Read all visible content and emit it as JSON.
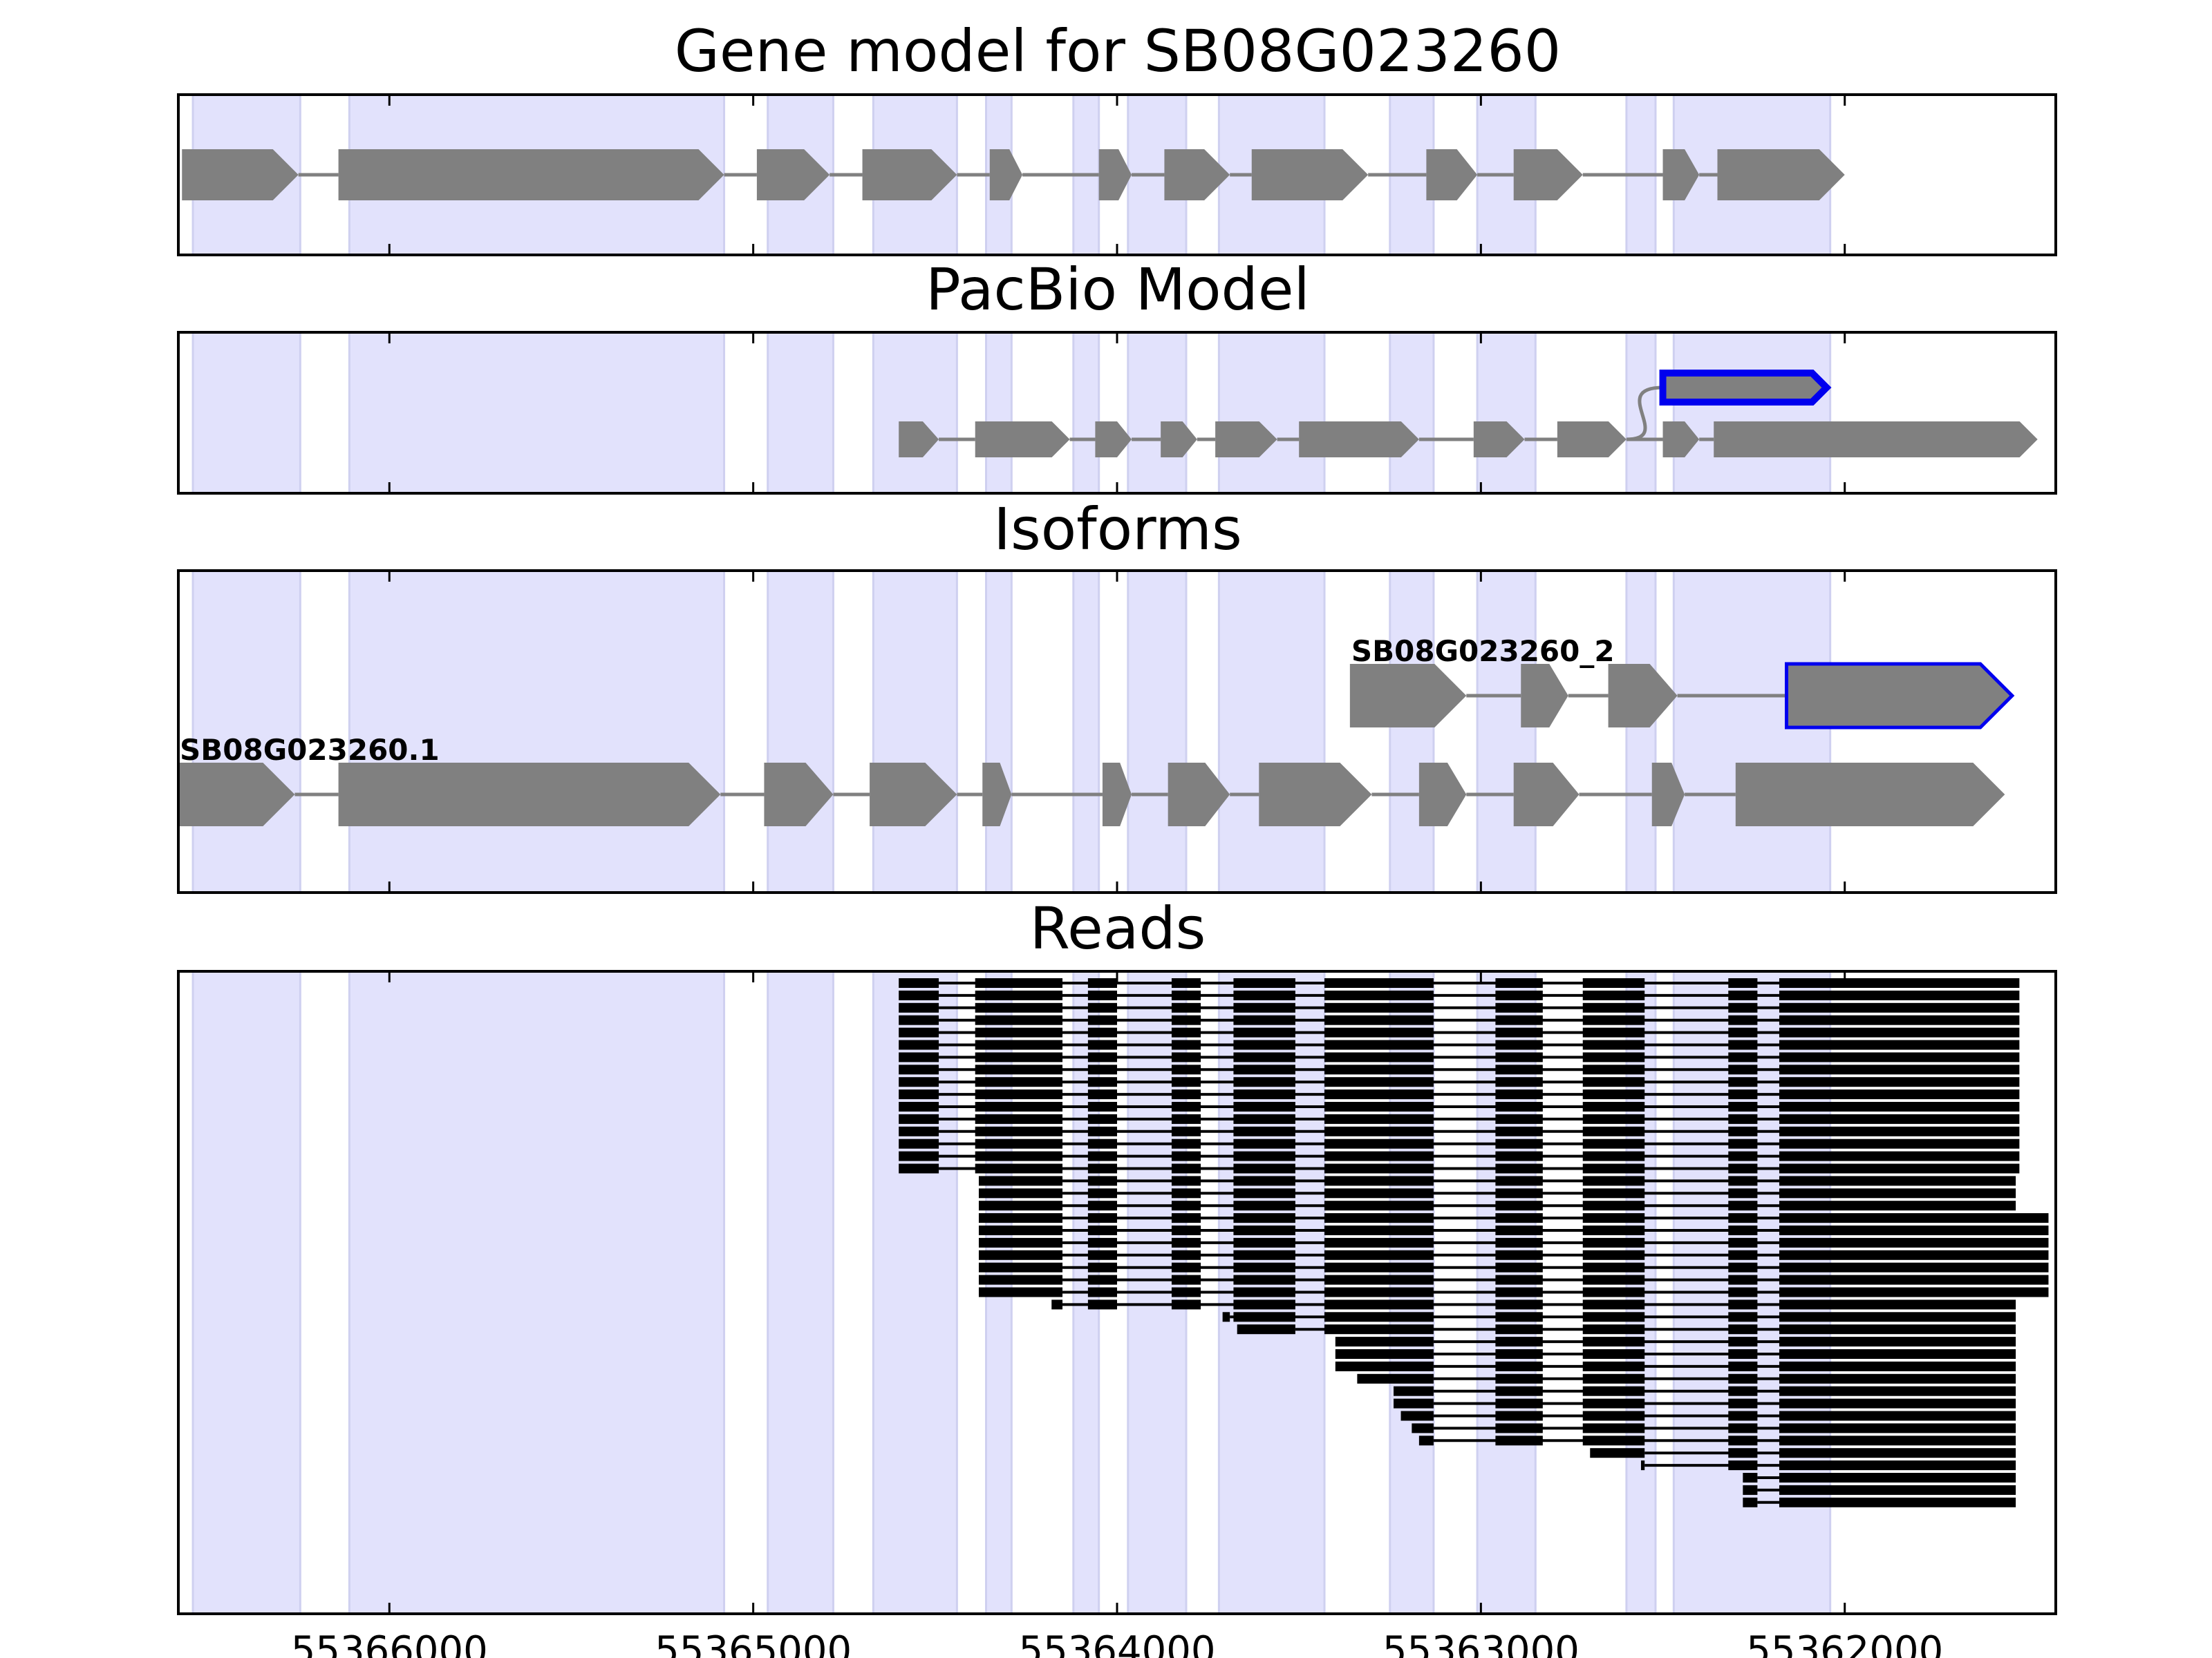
{
  "chart_data": {
    "type": "gene-structure",
    "xlim": [
      55366580,
      55361420
    ],
    "x_ticks": [
      55366000,
      55365000,
      55364000,
      55363000,
      55362000
    ],
    "x_tick_labels": [
      "55366000",
      "55365000",
      "55364000",
      "55363000",
      "55362000"
    ],
    "shaded_exons": [
      [
        55366540,
        55366245
      ],
      [
        55366110,
        55365080
      ],
      [
        55364960,
        55364780
      ],
      [
        55364670,
        55364440
      ],
      [
        55364360,
        55364290
      ],
      [
        55364120,
        55364050
      ],
      [
        55363970,
        55363810
      ],
      [
        55363720,
        55363430
      ],
      [
        55363250,
        55363130
      ],
      [
        55363010,
        55362850
      ],
      [
        55362600,
        55362520
      ],
      [
        55362470,
        55362040
      ]
    ],
    "panels": [
      {
        "id": "gene-model",
        "title": "Gene model for SB08G023260",
        "tracks": [
          {
            "exons": [
              [
                55366570,
                55366250
              ],
              [
                55366140,
                55365080
              ],
              [
                55364990,
                55364790
              ],
              [
                55364700,
                55364440
              ],
              [
                55364350,
                55364260
              ],
              [
                55364050,
                55363960
              ],
              [
                55363870,
                55363690
              ],
              [
                55363630,
                55363310
              ],
              [
                55363150,
                55363010
              ],
              [
                55362910,
                55362720
              ],
              [
                55362500,
                55362400
              ],
              [
                55362350,
                55362000
              ]
            ],
            "outline": false
          }
        ]
      },
      {
        "id": "pacbio-model",
        "title": "PacBio Model",
        "tracks": [
          {
            "exons": [
              [
                55364600,
                55364490
              ],
              [
                55364390,
                55364130
              ],
              [
                55364060,
                55363960
              ],
              [
                55363880,
                55363780
              ],
              [
                55363730,
                55363560
              ],
              [
                55363500,
                55363170
              ],
              [
                55363020,
                55362880
              ],
              [
                55362790,
                55362600
              ]
            ],
            "outline": false
          },
          {
            "exons": [
              [
                55362500,
                55362400
              ],
              [
                55362360,
                55361470
              ]
            ],
            "outline": false
          },
          {
            "exons": [
              [
                55362500,
                55362050
              ]
            ],
            "outline": true,
            "branch_from": 55362600
          }
        ]
      },
      {
        "id": "isoforms",
        "title": "Isoforms",
        "tracks": [
          {
            "label": "SB08G023260_2",
            "exons": [
              [
                55363360,
                55363040
              ],
              [
                55362890,
                55362760
              ],
              [
                55362650,
                55362460
              ],
              [
                55362160,
                55361540
              ]
            ],
            "outline_last": true
          },
          {
            "label": "SB08G023260.1",
            "exons": [
              [
                55366580,
                55366260
              ],
              [
                55366140,
                55365090
              ],
              [
                55364970,
                55364780
              ],
              [
                55364680,
                55364440
              ],
              [
                55364370,
                55364290
              ],
              [
                55364040,
                55363960
              ],
              [
                55363860,
                55363690
              ],
              [
                55363610,
                55363300
              ],
              [
                55363170,
                55363040
              ],
              [
                55362910,
                55362730
              ],
              [
                55362530,
                55362440
              ],
              [
                55362300,
                55361560
              ]
            ],
            "outline_last": false
          }
        ]
      },
      {
        "id": "reads",
        "title": "Reads"
      }
    ],
    "reads": [
      {
        "count": 16,
        "exons": [
          [
            55364600,
            55364490
          ],
          [
            55364390,
            55364150
          ],
          [
            55364080,
            55364000
          ],
          [
            55363850,
            55363770
          ],
          [
            55363680,
            55363510
          ],
          [
            55363430,
            55363130
          ],
          [
            55362960,
            55362830
          ],
          [
            55362720,
            55362550
          ],
          [
            55362320,
            55362240
          ],
          [
            55362180,
            55361520
          ]
        ]
      },
      {
        "count": 3,
        "exons": [
          [
            55364380,
            55364150
          ],
          [
            55364080,
            55364000
          ],
          [
            55363850,
            55363770
          ],
          [
            55363680,
            55363510
          ],
          [
            55363430,
            55363130
          ],
          [
            55362960,
            55362830
          ],
          [
            55362720,
            55362550
          ],
          [
            55362320,
            55362240
          ],
          [
            55362180,
            55361530
          ]
        ]
      },
      {
        "count": 7,
        "exons": [
          [
            55364380,
            55364150
          ],
          [
            55364080,
            55364000
          ],
          [
            55363850,
            55363770
          ],
          [
            55363680,
            55363510
          ],
          [
            55363430,
            55363130
          ],
          [
            55362960,
            55362830
          ],
          [
            55362720,
            55362550
          ],
          [
            55362320,
            55362240
          ],
          [
            55362180,
            55361440
          ]
        ]
      },
      {
        "count": 1,
        "exons": [
          [
            55364180,
            55364150
          ],
          [
            55364080,
            55364000
          ],
          [
            55363850,
            55363770
          ],
          [
            55363680,
            55363510
          ],
          [
            55363430,
            55363130
          ],
          [
            55362960,
            55362830
          ],
          [
            55362720,
            55362550
          ],
          [
            55362320,
            55362240
          ],
          [
            55362180,
            55361530
          ]
        ]
      },
      {
        "count": 1,
        "exons": [
          [
            55363710,
            55363690
          ],
          [
            55363680,
            55363510
          ],
          [
            55363430,
            55363130
          ],
          [
            55362960,
            55362830
          ],
          [
            55362720,
            55362550
          ],
          [
            55362320,
            55362240
          ],
          [
            55362180,
            55361530
          ]
        ]
      },
      {
        "count": 1,
        "exons": [
          [
            55363670,
            55363510
          ],
          [
            55363430,
            55363130
          ],
          [
            55362960,
            55362830
          ],
          [
            55362720,
            55362550
          ],
          [
            55362320,
            55362240
          ],
          [
            55362180,
            55361530
          ]
        ]
      },
      {
        "count": 3,
        "exons": [
          [
            55363400,
            55363130
          ],
          [
            55362960,
            55362830
          ],
          [
            55362720,
            55362550
          ],
          [
            55362320,
            55362240
          ],
          [
            55362180,
            55361530
          ]
        ]
      },
      {
        "count": 1,
        "exons": [
          [
            55363340,
            55363130
          ],
          [
            55362960,
            55362830
          ],
          [
            55362720,
            55362550
          ],
          [
            55362320,
            55362240
          ],
          [
            55362180,
            55361530
          ]
        ]
      },
      {
        "count": 2,
        "exons": [
          [
            55363240,
            55363130
          ],
          [
            55362960,
            55362830
          ],
          [
            55362720,
            55362550
          ],
          [
            55362320,
            55362240
          ],
          [
            55362180,
            55361530
          ]
        ]
      },
      {
        "count": 1,
        "exons": [
          [
            55363220,
            55363130
          ],
          [
            55362960,
            55362830
          ],
          [
            55362720,
            55362550
          ],
          [
            55362320,
            55362240
          ],
          [
            55362180,
            55361530
          ]
        ]
      },
      {
        "count": 1,
        "exons": [
          [
            55363190,
            55363130
          ],
          [
            55362960,
            55362830
          ],
          [
            55362720,
            55362550
          ],
          [
            55362320,
            55362240
          ],
          [
            55362180,
            55361530
          ]
        ]
      },
      {
        "count": 1,
        "exons": [
          [
            55363170,
            55363130
          ],
          [
            55362960,
            55362830
          ],
          [
            55362720,
            55362550
          ],
          [
            55362320,
            55362240
          ],
          [
            55362180,
            55361530
          ]
        ]
      },
      {
        "count": 1,
        "exons": [
          [
            55362700,
            55362550
          ],
          [
            55362320,
            55362240
          ],
          [
            55362180,
            55361530
          ]
        ]
      },
      {
        "count": 1,
        "exons": [
          [
            55362560,
            55362550
          ],
          [
            55362320,
            55362240
          ],
          [
            55362180,
            55361530
          ]
        ]
      },
      {
        "count": 3,
        "exons": [
          [
            55362280,
            55362240
          ],
          [
            55362180,
            55361530
          ]
        ]
      }
    ],
    "colors": {
      "shade": "#e2e2fc",
      "shade_edge": "#cfd0f0",
      "exon": "#808080",
      "intron": "#808080",
      "outline": "#0000ee",
      "read": "#000000"
    }
  }
}
